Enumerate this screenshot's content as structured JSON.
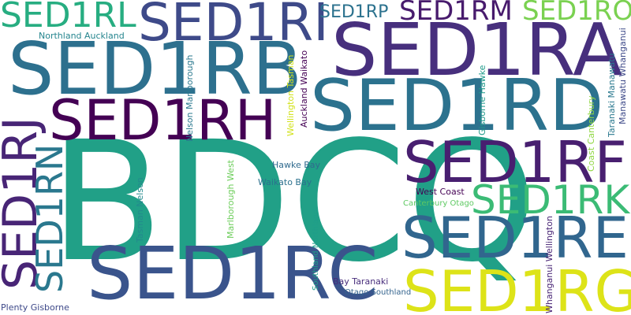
{
  "words": [
    {
      "id": "bdcq",
      "text": "BDCQ",
      "color": "#21a087"
    },
    {
      "id": "sed1ra",
      "text": "SED1RA",
      "color": "#472f7d"
    },
    {
      "id": "sed1rb",
      "text": "SED1RB",
      "color": "#2d708e"
    },
    {
      "id": "sed1rd",
      "text": "SED1RD",
      "color": "#2c728e"
    },
    {
      "id": "sed1rc",
      "text": "SED1RC",
      "color": "#3a548c"
    },
    {
      "id": "sed1rh",
      "text": "SED1RH",
      "color": "#440154"
    },
    {
      "id": "sed1rf",
      "text": "SED1RF",
      "color": "#481f70"
    },
    {
      "id": "sed1re",
      "text": "SED1RE",
      "color": "#31668e"
    },
    {
      "id": "sed1rg",
      "text": "SED1RG",
      "color": "#dde318"
    },
    {
      "id": "sed1ri",
      "text": "SED1RI",
      "color": "#3e4a89"
    },
    {
      "id": "sed1rj",
      "text": "SED1RJ",
      "color": "#482576"
    },
    {
      "id": "sed1rn",
      "text": "SED1RN",
      "color": "#2a788e"
    },
    {
      "id": "sed1rk",
      "text": "SED1RK",
      "color": "#3bbb75"
    },
    {
      "id": "sed1rl",
      "text": "SED1RL",
      "color": "#27ad81"
    },
    {
      "id": "sed1rm",
      "text": "SED1RM",
      "color": "#481b6d"
    },
    {
      "id": "sed1ro",
      "text": "SED1RO",
      "color": "#7ad151"
    },
    {
      "id": "sed1rp",
      "text": "SED1RP",
      "color": "#2c728e"
    },
    {
      "id": "northland-auckland",
      "text": "Northland Auckland",
      "color": "#25858e"
    },
    {
      "id": "nelson-marlborough",
      "text": "Nelson Marlborough",
      "color": "#2a788e"
    },
    {
      "id": "wellington-tasman",
      "text": "Wellington Tasman",
      "color": "#d2e21b"
    },
    {
      "id": "auckland-waikato",
      "text": "Auckland Waikato",
      "color": "#440154"
    },
    {
      "id": "gisborne-hawke",
      "text": "Gisborne Hawke",
      "color": "#1f9a8a"
    },
    {
      "id": "coast-canterbury",
      "text": "Coast Canterbury",
      "color": "#90d743"
    },
    {
      "id": "taranaki-manawatu",
      "text": "Taranaki Manawatu",
      "color": "#2a788e"
    },
    {
      "id": "manawatu-whanganui",
      "text": "Manawatu Whanganui",
      "color": "#3e4a89"
    },
    {
      "id": "hawke-bay",
      "text": "Hawke Bay",
      "color": "#306a8e"
    },
    {
      "id": "waikato-bay",
      "text": "Waikato Bay",
      "color": "#2c718e"
    },
    {
      "id": "west-coast",
      "text": "West Coast",
      "color": "#440154"
    },
    {
      "id": "canterbury-otago",
      "text": "Canterbury Otago",
      "color": "#5ec962"
    },
    {
      "id": "tasman-nelson",
      "text": "Tasman Nelson",
      "color": "#238a8d"
    },
    {
      "id": "marlborough-west",
      "text": "Marlborough West",
      "color": "#6ccd5a"
    },
    {
      "id": "southland-northland",
      "text": "Southland Northland",
      "color": "#1f9e89"
    },
    {
      "id": "whanganui-wellington",
      "text": "Whanganui Wellington",
      "color": "#482475"
    },
    {
      "id": "bay-taranaki",
      "text": "Bay Taranaki",
      "color": "#472d7b"
    },
    {
      "id": "otago-southland",
      "text": "Otago Southland",
      "color": "#33638d"
    },
    {
      "id": "plenty-gisborne",
      "text": "Plenty Gisborne",
      "color": "#3e4989"
    }
  ]
}
